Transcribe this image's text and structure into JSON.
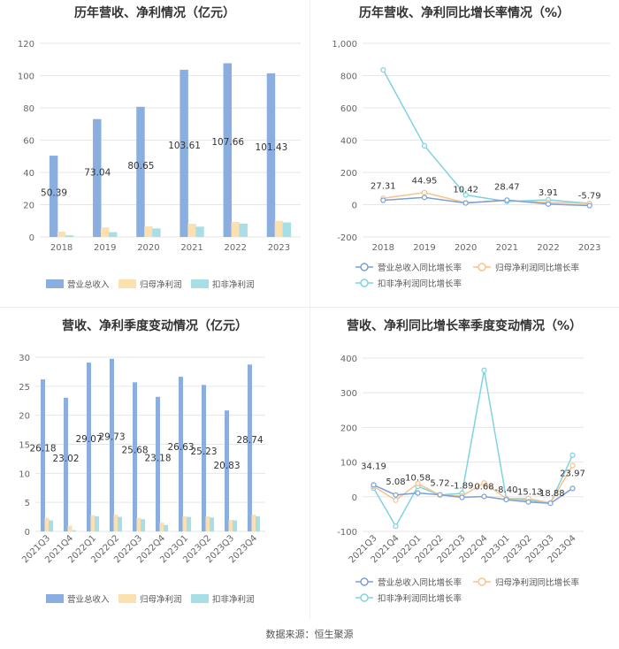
{
  "footer": "数据来源：恒生聚源",
  "colors": {
    "revenue": "#8aaee0",
    "net_profit": "#fbe0b2",
    "deducted_profit": "#a8dfe6",
    "rev_growth_line": "#7b9fd6",
    "np_growth_line": "#f8c48a",
    "dp_growth_line": "#7fd3e0",
    "grid": "#e6e6e6",
    "axis_text": "#666666"
  },
  "chart_data": [
    {
      "id": "annual_bar",
      "type": "bar",
      "title": "历年营收、净利情况（亿元）",
      "categories": [
        "2018",
        "2019",
        "2020",
        "2021",
        "2022",
        "2023"
      ],
      "ylim": [
        0,
        120
      ],
      "yticks": [
        "0",
        "20",
        "40",
        "60",
        "80",
        "100",
        "120"
      ],
      "grid": true,
      "legend_position": "bottom",
      "series": [
        {
          "name": "营业总收入",
          "values": [
            50.39,
            73.04,
            80.65,
            103.61,
            107.66,
            101.43
          ],
          "labels": [
            "50.39",
            "73.04",
            "80.65",
            "103.61",
            "107.66",
            "101.43"
          ]
        },
        {
          "name": "归母净利润",
          "values": [
            3.3,
            5.9,
            6.6,
            8.2,
            9.3,
            10.0
          ]
        },
        {
          "name": "扣非净利润",
          "values": [
            1.0,
            3.0,
            5.3,
            6.4,
            8.3,
            9.0
          ]
        }
      ]
    },
    {
      "id": "annual_growth",
      "type": "line",
      "title": "历年营收、净利同比增长率情况（%）",
      "categories": [
        "2018",
        "2019",
        "2020",
        "2021",
        "2022",
        "2023"
      ],
      "ylim": [
        -200,
        1000
      ],
      "yticks": [
        "-200",
        "0",
        "200",
        "400",
        "600",
        "800",
        "1,000"
      ],
      "grid": true,
      "legend_position": "bottom",
      "series": [
        {
          "name": "营业总收入同比增长率",
          "values": [
            27.31,
            44.95,
            10.42,
            28.47,
            3.91,
            -5.79
          ],
          "labels": [
            "27.31",
            "44.95",
            "10.42",
            "28.47",
            "3.91",
            "-5.79"
          ]
        },
        {
          "name": "归母净利润同比增长率",
          "values": [
            40,
            75,
            12,
            25,
            14,
            7
          ]
        },
        {
          "name": "扣非净利润同比增长率",
          "values": [
            835,
            365,
            60,
            20,
            30,
            8
          ]
        }
      ]
    },
    {
      "id": "quarterly_bar",
      "type": "bar",
      "title": "营收、净利季度变动情况（亿元）",
      "categories": [
        "2021Q3",
        "2021Q4",
        "2022Q1",
        "2022Q2",
        "2022Q3",
        "2022Q4",
        "2023Q1",
        "2023Q2",
        "2023Q3",
        "2023Q4"
      ],
      "ylim": [
        0,
        30
      ],
      "yticks": [
        "0",
        "5",
        "10",
        "15",
        "20",
        "25",
        "30"
      ],
      "grid": true,
      "legend_position": "bottom",
      "series": [
        {
          "name": "营业总收入",
          "values": [
            26.18,
            23.02,
            29.07,
            29.73,
            25.68,
            23.18,
            26.63,
            25.23,
            20.83,
            28.74
          ],
          "labels": [
            "26.18",
            "23.02",
            "29.07",
            "29.73",
            "25.68",
            "23.18",
            "26.63",
            "25.23",
            "20.83",
            "28.74"
          ]
        },
        {
          "name": "归母净利润",
          "values": [
            2.3,
            1.0,
            2.8,
            2.9,
            2.3,
            1.5,
            2.6,
            2.6,
            2.0,
            2.9
          ]
        },
        {
          "name": "扣非净利润",
          "values": [
            1.9,
            0.2,
            2.6,
            2.5,
            2.1,
            1.1,
            2.5,
            2.4,
            1.9,
            2.6
          ]
        }
      ]
    },
    {
      "id": "quarterly_growth",
      "type": "line",
      "title": "营收、净利同比增长率季度变动情况（%）",
      "categories": [
        "2021Q3",
        "2021Q4",
        "2022Q1",
        "2022Q2",
        "2022Q3",
        "2022Q4",
        "2023Q1",
        "2023Q2",
        "2023Q3",
        "2023Q4"
      ],
      "ylim": [
        -100,
        400
      ],
      "yticks": [
        "-100",
        "0",
        "100",
        "200",
        "300",
        "400"
      ],
      "grid": true,
      "legend_position": "bottom",
      "series": [
        {
          "name": "营业总收入同比增长率",
          "values": [
            34.19,
            5.08,
            10.58,
            5.72,
            -1.89,
            0.68,
            -8.4,
            -15.13,
            -18.88,
            23.97
          ],
          "labels": [
            "34.19",
            "5.08",
            "10.58",
            "5.72",
            "-1.89",
            "0.68",
            "-8.40",
            "-15.13",
            "-18.88",
            "23.97"
          ]
        },
        {
          "name": "归母净利润同比增长率",
          "values": [
            30,
            -10,
            38,
            5,
            2,
            40,
            -5,
            -5,
            -18,
            90
          ]
        },
        {
          "name": "扣非净利润同比增长率",
          "values": [
            25,
            -85,
            30,
            5,
            10,
            365,
            -5,
            -10,
            -18,
            120
          ]
        }
      ]
    }
  ]
}
